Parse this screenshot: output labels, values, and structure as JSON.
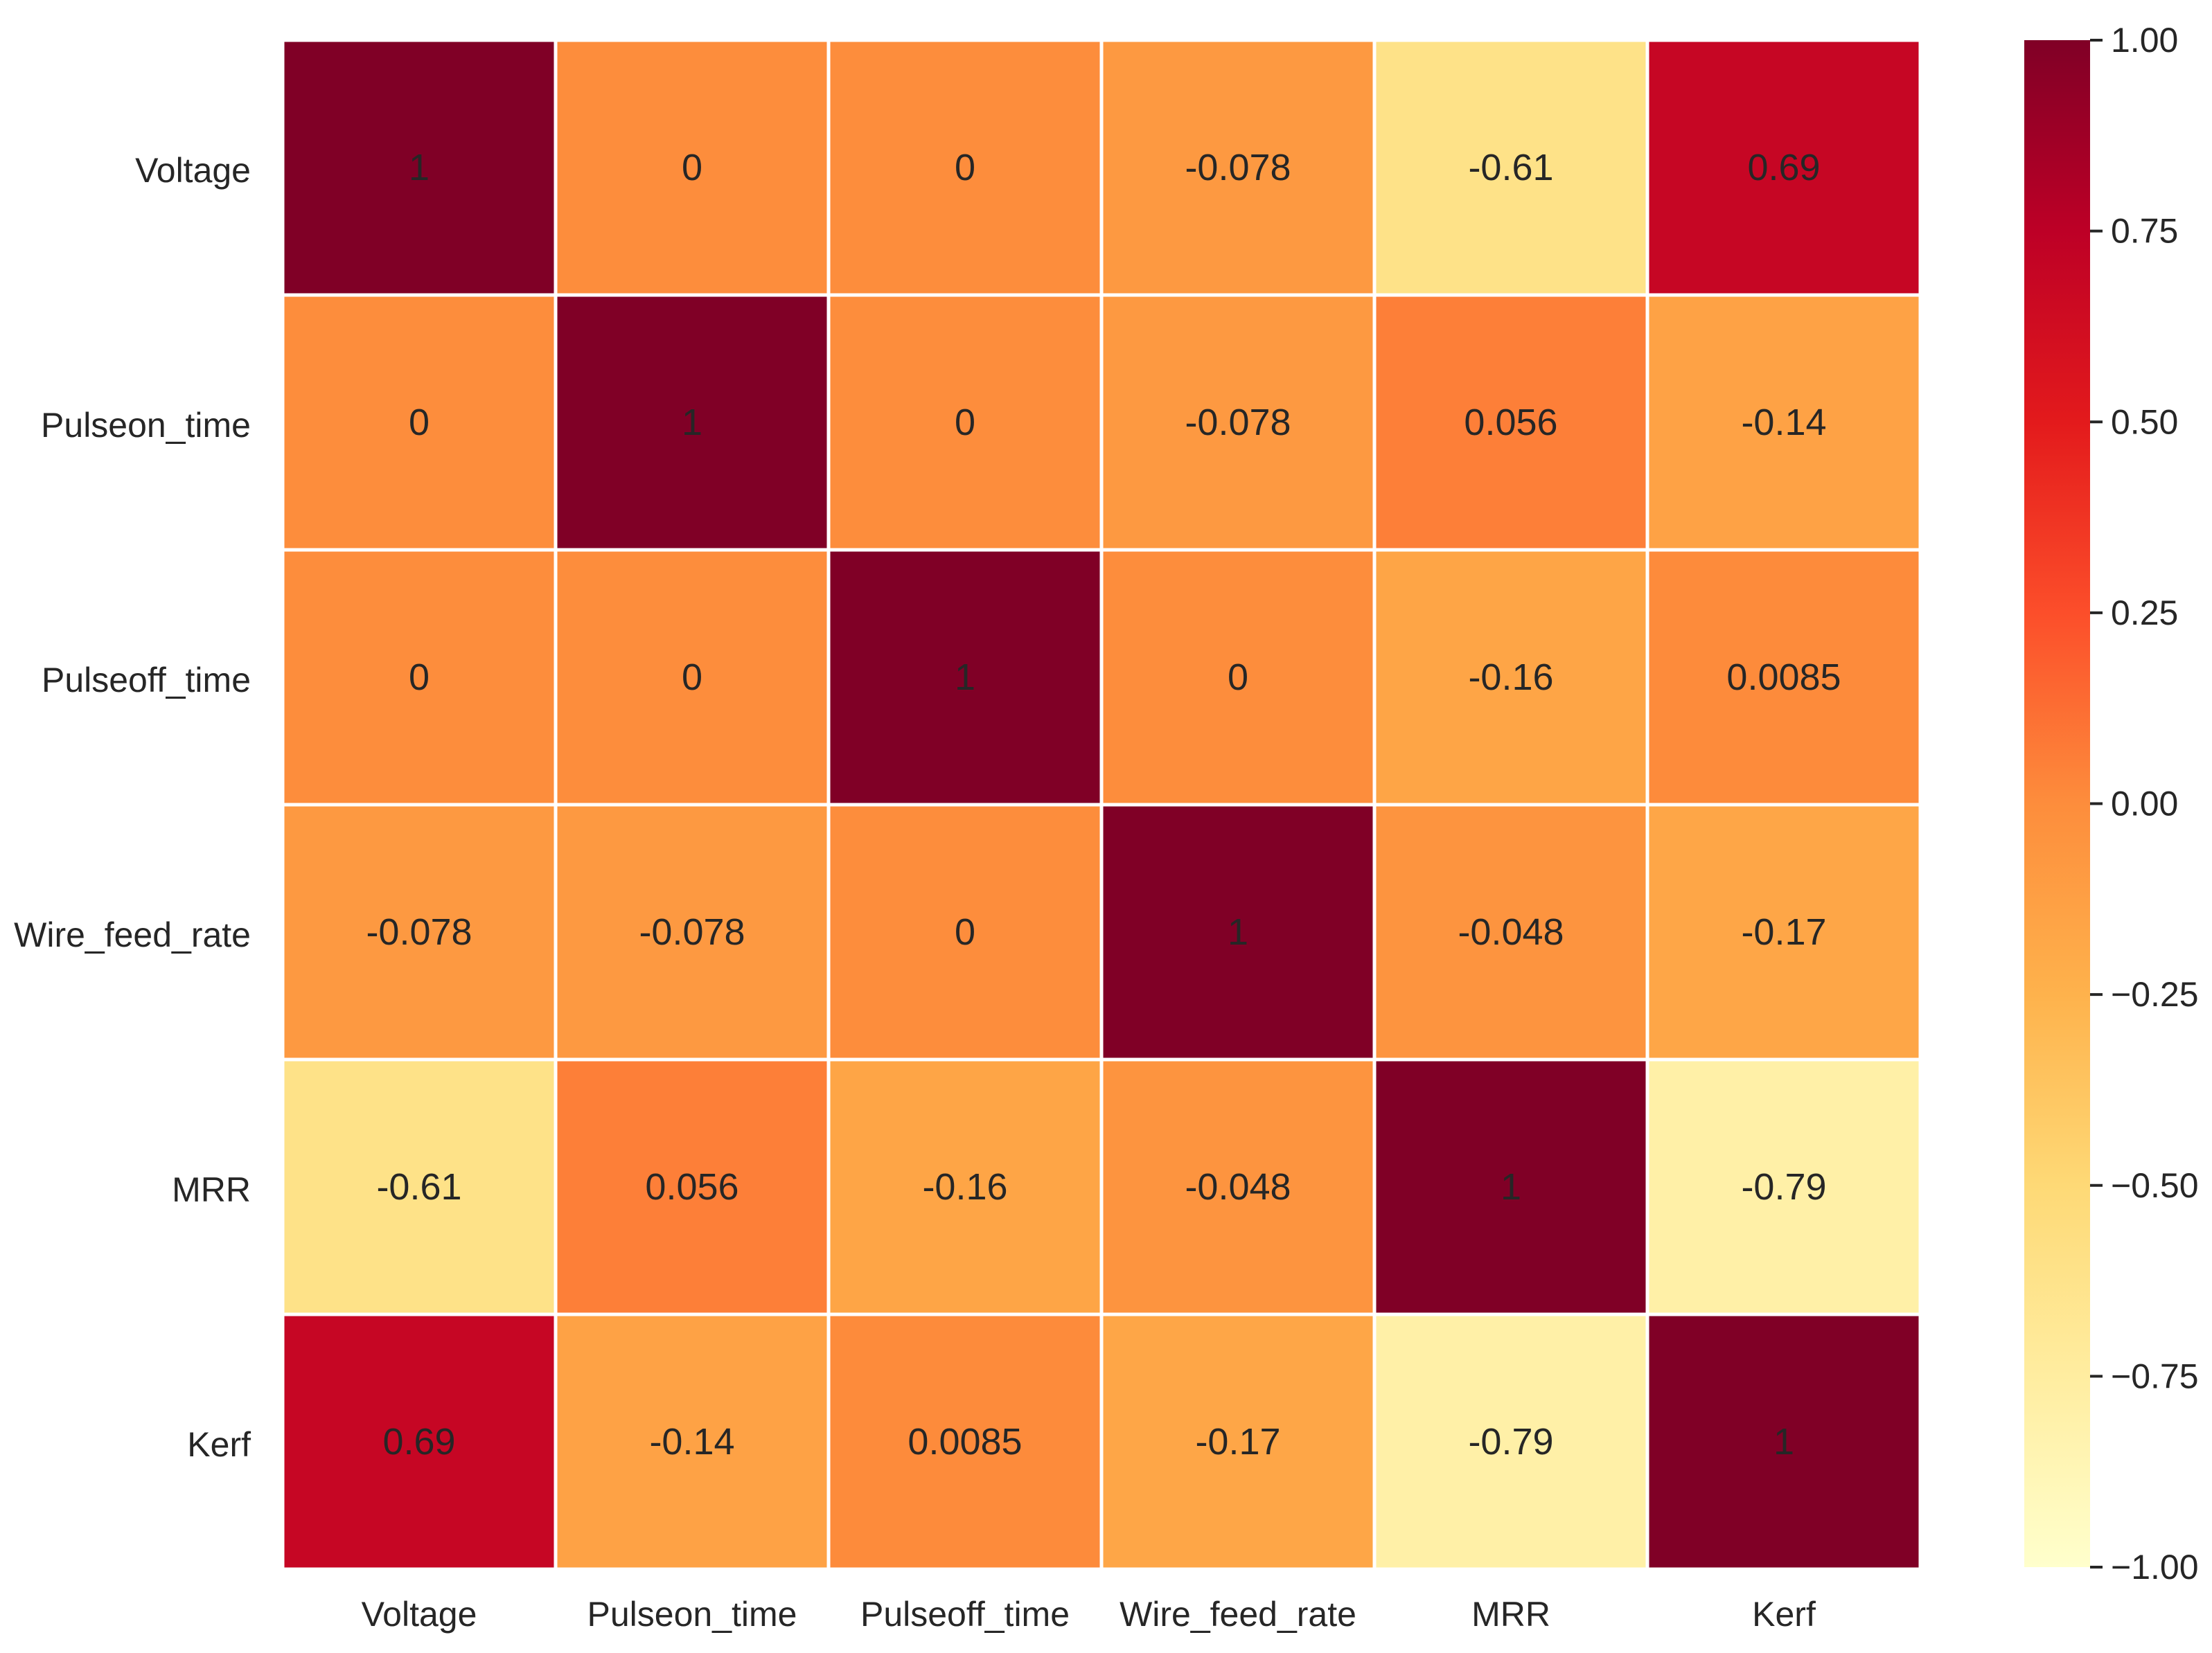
{
  "chart_data": {
    "type": "heatmap",
    "title": "",
    "xlabel": "",
    "ylabel": "",
    "rows": [
      "Voltage",
      "Pulseon_time",
      "Pulseoff_time",
      "Wire_feed_rate",
      "MRR",
      "Kerf"
    ],
    "columns": [
      "Voltage",
      "Pulseon_time",
      "Pulseoff_time",
      "Wire_feed_rate",
      "MRR",
      "Kerf"
    ],
    "values": [
      [
        1,
        0,
        0,
        -0.078,
        -0.61,
        0.69
      ],
      [
        0,
        1,
        0,
        -0.078,
        0.056,
        -0.14
      ],
      [
        0,
        0,
        1,
        0,
        -0.16,
        0.0085
      ],
      [
        -0.078,
        -0.078,
        0,
        1,
        -0.048,
        -0.17
      ],
      [
        -0.61,
        0.056,
        -0.16,
        -0.048,
        1,
        -0.79
      ],
      [
        0.69,
        -0.14,
        0.0085,
        -0.17,
        -0.79,
        1
      ]
    ],
    "annotations": [
      [
        "1",
        "0",
        "0",
        "-0.078",
        "-0.61",
        "0.69"
      ],
      [
        "0",
        "1",
        "0",
        "-0.078",
        "0.056",
        "-0.14"
      ],
      [
        "0",
        "0",
        "1",
        "0",
        "-0.16",
        "0.0085"
      ],
      [
        "-0.078",
        "-0.078",
        "0",
        "1",
        "-0.048",
        "-0.17"
      ],
      [
        "-0.61",
        "0.056",
        "-0.16",
        "-0.048",
        "1",
        "-0.79"
      ],
      [
        "0.69",
        "-0.14",
        "0.0085",
        "-0.17",
        "-0.79",
        "1"
      ]
    ],
    "colormap": "YlOrRd",
    "colormap_stops": [
      "#ffffcc",
      "#ffeda0",
      "#fed976",
      "#feb24c",
      "#fd8d3c",
      "#fc4e2a",
      "#e31a1c",
      "#bd0026",
      "#800026"
    ],
    "vmin": -1,
    "vmax": 1,
    "colorbar": {
      "ticks": [
        1.0,
        0.75,
        0.5,
        0.25,
        0.0,
        -0.25,
        -0.5,
        -0.75,
        -1.0
      ],
      "tick_labels": [
        "1.00",
        "0.75",
        "0.50",
        "0.25",
        "0.00",
        "−0.25",
        "−0.50",
        "−0.75",
        "−1.00"
      ],
      "placement": "right"
    },
    "light_text_color": "#ffffff",
    "dark_text_color": "#262626",
    "grid_line_color": "#ffffff"
  }
}
